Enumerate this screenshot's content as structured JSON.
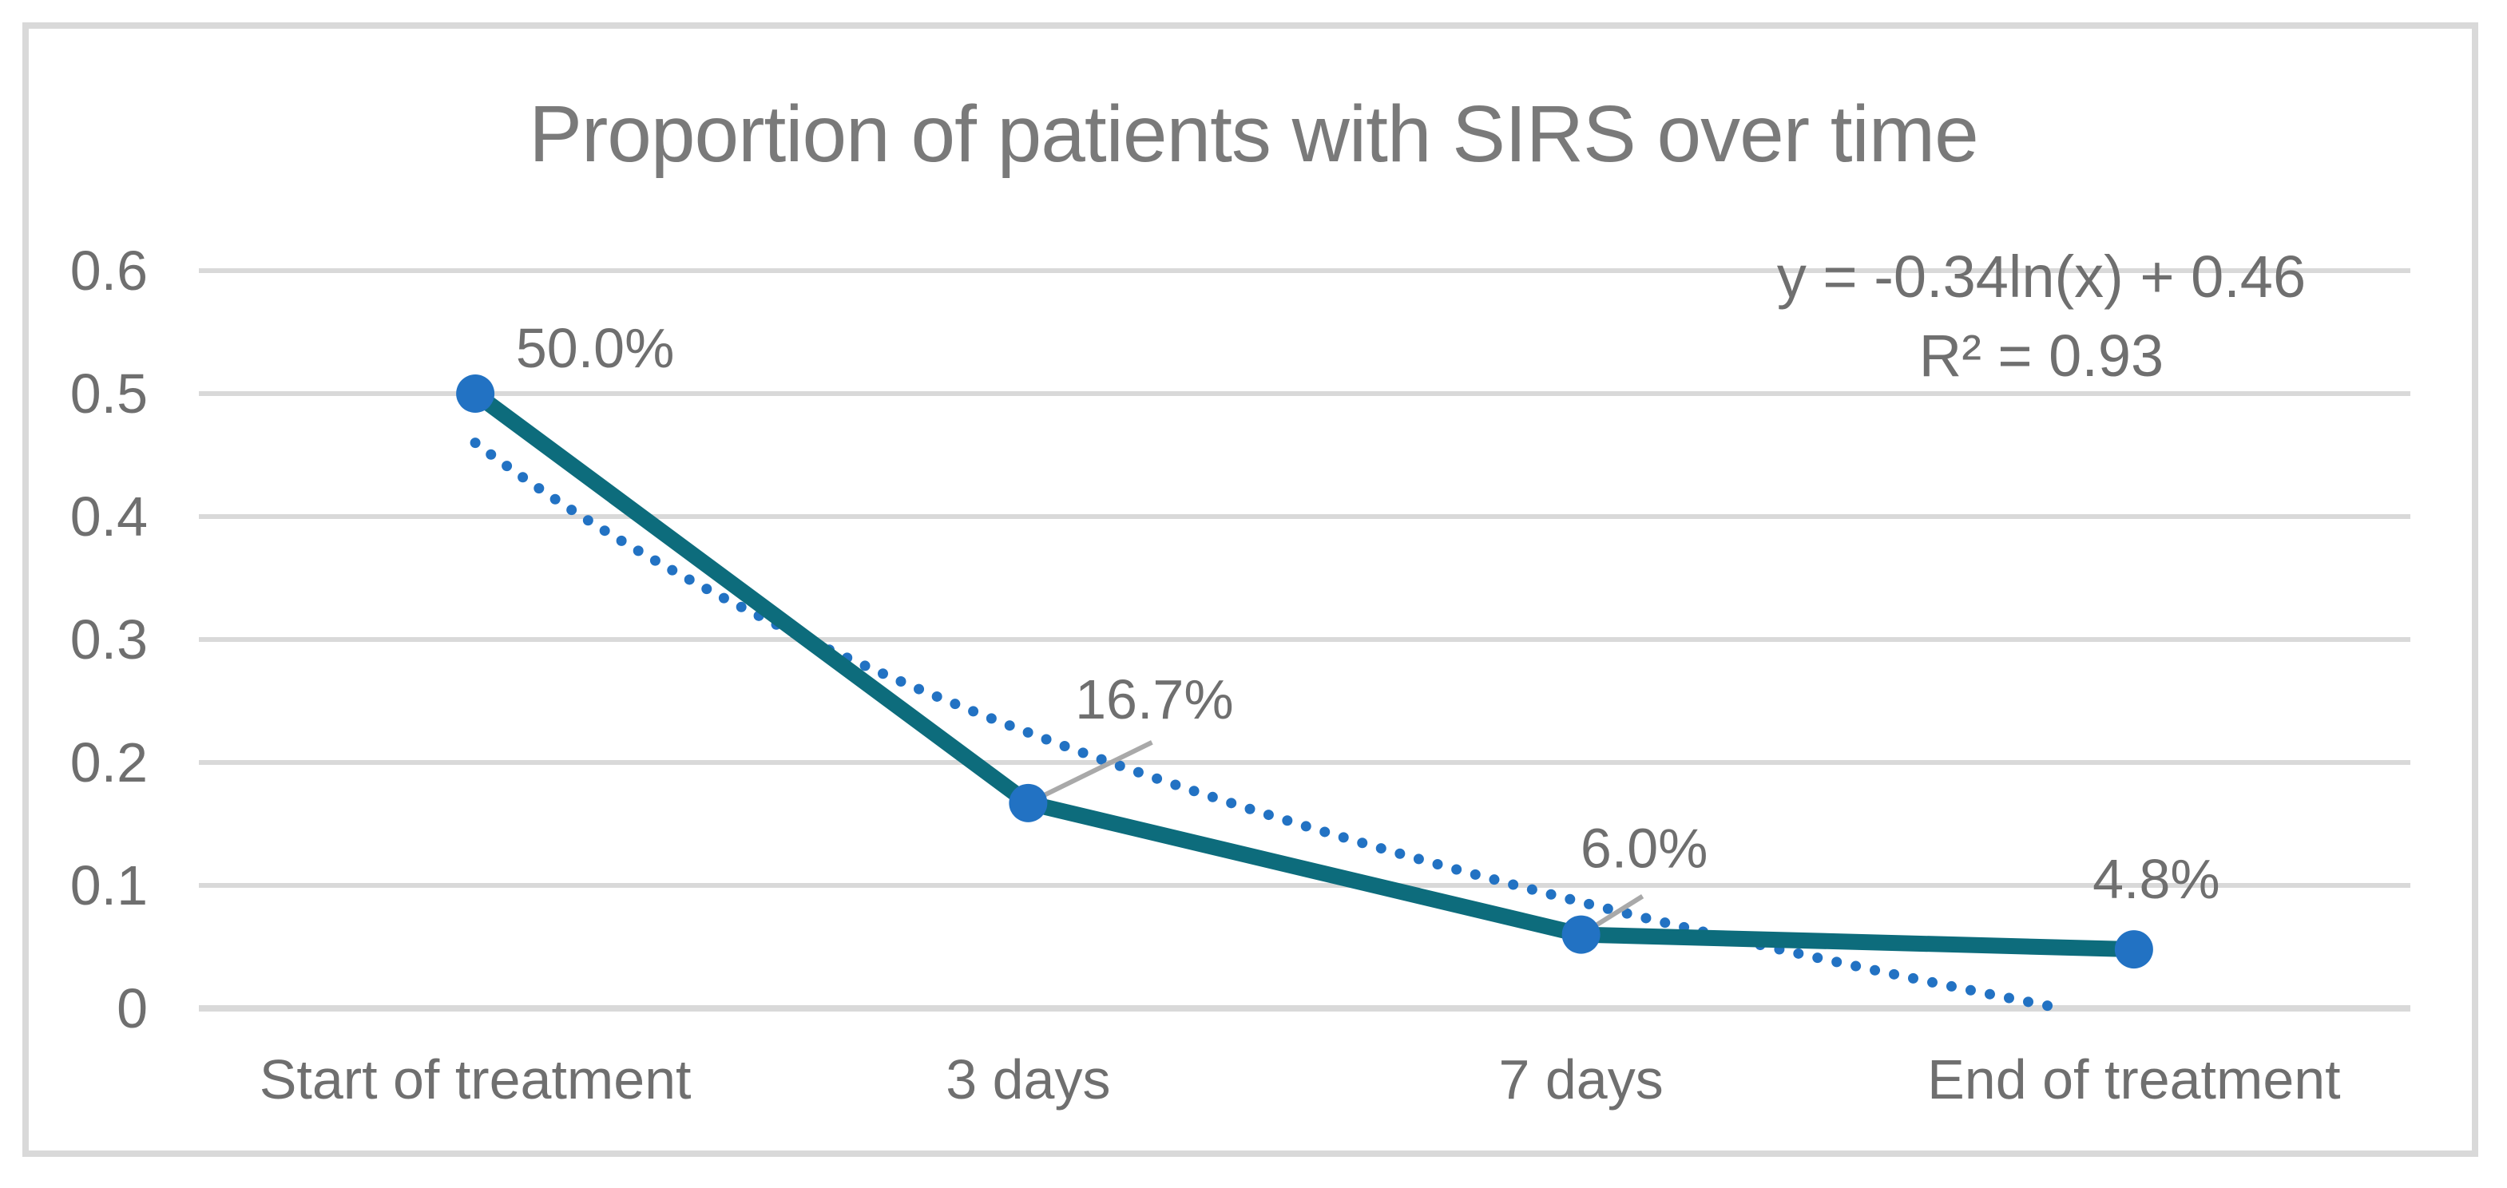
{
  "title": "Proportion of patients with SIRS over time",
  "chart_data": {
    "type": "line",
    "title": "Proportion of patients with SIRS over time",
    "categories": [
      "Start of treatment",
      "3 days",
      "7 days",
      "End of treatment"
    ],
    "series": [
      {
        "name": "Proportion of patients with SIRS",
        "values": [
          0.5,
          0.167,
          0.06,
          0.048
        ],
        "data_labels": [
          "50.0%",
          "16.7%",
          "6.0%",
          "4.8%"
        ],
        "line_color": "#0D6C7C",
        "marker_color": "#2272C3"
      }
    ],
    "xlabel": "",
    "ylabel": "",
    "ylim": [
      0,
      0.6
    ],
    "y_ticks": [
      0,
      0.1,
      0.2,
      0.3,
      0.4,
      0.5,
      0.6
    ],
    "y_tick_labels": [
      "0",
      "0.1",
      "0.2",
      "0.3",
      "0.4",
      "0.5",
      "0.6"
    ],
    "grid": true,
    "legend": "none",
    "trendline": {
      "type": "logarithmic",
      "coefficients": {
        "a": -0.34,
        "b": 0.46
      },
      "equation_label": "y = -0.34ln(x) + 0.46",
      "r_squared_label": "R² = 0.93",
      "color": "#2272C3",
      "style": "dotted"
    }
  },
  "colors": {
    "text": "#6F6F6F",
    "title_text": "#7A7A7A",
    "gridline": "#D9D9D9",
    "axis_line": "#D9D9D9",
    "border": "#D9D9D9",
    "leader_line": "#A9A9A9",
    "background": "#FFFFFF"
  }
}
